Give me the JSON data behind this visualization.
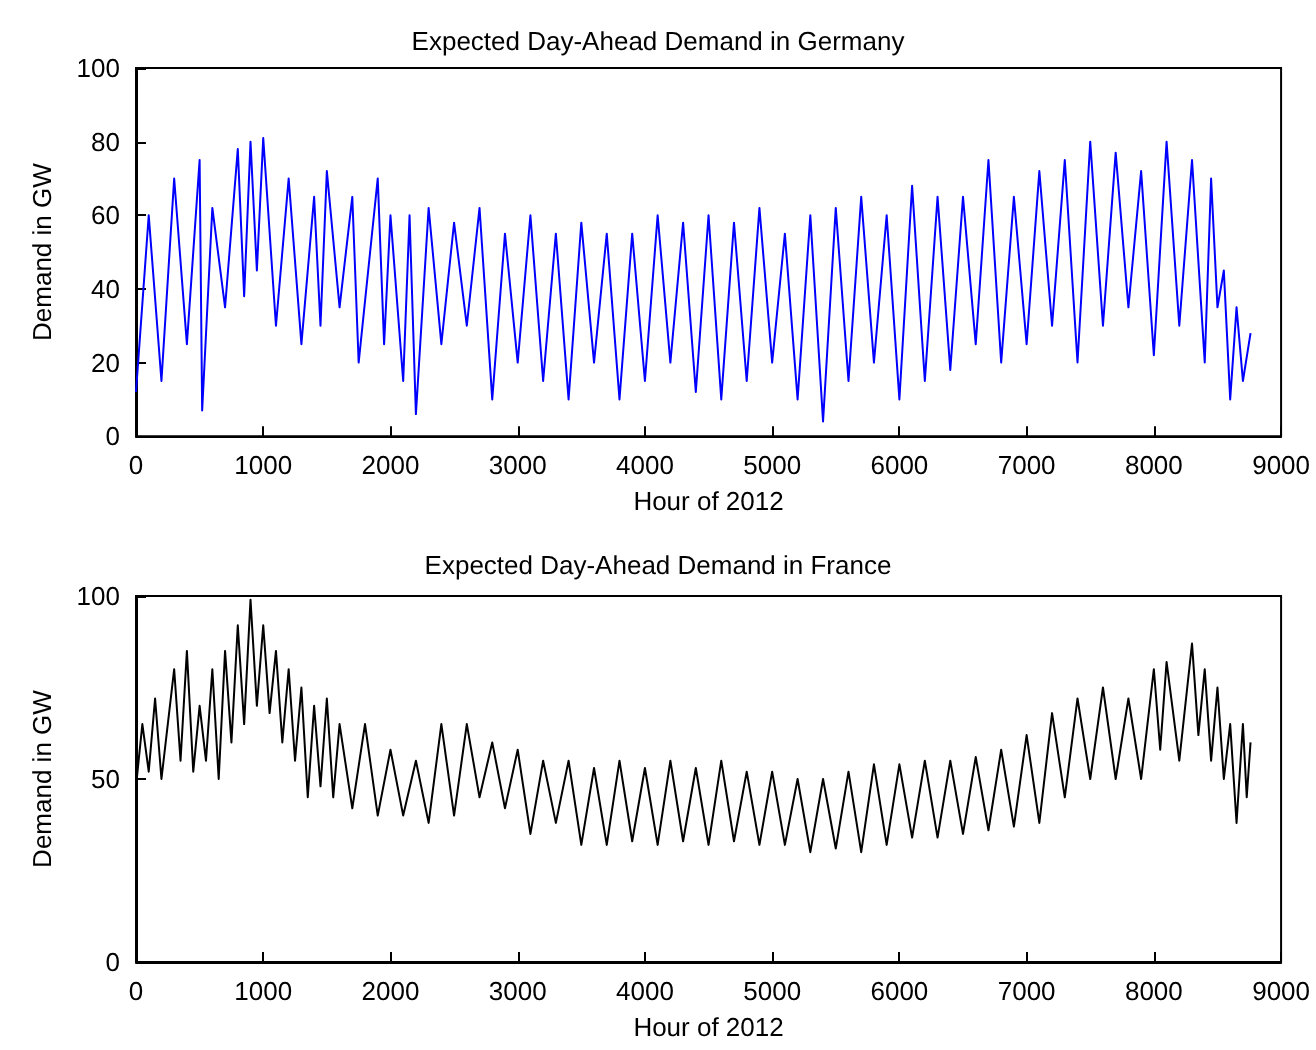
{
  "chart_data": [
    {
      "type": "line",
      "title": "Expected Day-Ahead Demand in Germany",
      "xlabel": "Hour of 2012",
      "ylabel": "Demand in GW",
      "x": [
        0,
        100,
        200,
        300,
        400,
        500,
        520,
        600,
        700,
        800,
        850,
        900,
        950,
        1000,
        1100,
        1200,
        1300,
        1400,
        1450,
        1500,
        1600,
        1700,
        1750,
        1900,
        1950,
        2000,
        2100,
        2150,
        2200,
        2300,
        2400,
        2500,
        2600,
        2700,
        2800,
        2900,
        3000,
        3100,
        3200,
        3300,
        3400,
        3500,
        3600,
        3700,
        3800,
        3900,
        4000,
        4100,
        4200,
        4300,
        4400,
        4500,
        4600,
        4700,
        4800,
        4900,
        5000,
        5100,
        5200,
        5300,
        5400,
        5500,
        5600,
        5700,
        5800,
        5900,
        6000,
        6100,
        6200,
        6300,
        6400,
        6500,
        6600,
        6700,
        6800,
        6900,
        7000,
        7100,
        7200,
        7300,
        7400,
        7500,
        7600,
        7700,
        7800,
        7900,
        8000,
        8100,
        8200,
        8300,
        8400,
        8450,
        8500,
        8550,
        8600,
        8650,
        8700,
        8760
      ],
      "series": [
        {
          "color": "#0000ff",
          "values": [
            12,
            60,
            15,
            70,
            25,
            75,
            7,
            62,
            35,
            78,
            38,
            80,
            45,
            81,
            30,
            70,
            25,
            65,
            30,
            72,
            35,
            65,
            20,
            70,
            25,
            60,
            15,
            60,
            6,
            62,
            25,
            58,
            30,
            62,
            10,
            55,
            20,
            60,
            15,
            55,
            10,
            58,
            20,
            55,
            10,
            55,
            15,
            60,
            20,
            58,
            12,
            60,
            10,
            58,
            15,
            62,
            20,
            55,
            10,
            60,
            4,
            62,
            15,
            65,
            20,
            60,
            10,
            68,
            15,
            65,
            18,
            65,
            25,
            75,
            20,
            65,
            25,
            72,
            30,
            75,
            20,
            80,
            30,
            77,
            35,
            72,
            22,
            80,
            30,
            75,
            20,
            70,
            35,
            45,
            10,
            35,
            15,
            28
          ]
        }
      ],
      "xlim": [
        0,
        9000
      ],
      "xticks": [
        0,
        1000,
        2000,
        3000,
        4000,
        5000,
        6000,
        7000,
        8000,
        9000
      ],
      "ylim": [
        0,
        100
      ],
      "yticks": [
        0,
        20,
        40,
        60,
        80,
        100
      ]
    },
    {
      "type": "line",
      "title": "Expected Day-Ahead Demand in France",
      "xlabel": "Hour of 2012",
      "ylabel": "Demand in GW",
      "x": [
        0,
        50,
        100,
        150,
        200,
        300,
        350,
        400,
        450,
        500,
        550,
        600,
        650,
        700,
        750,
        800,
        850,
        900,
        950,
        1000,
        1050,
        1100,
        1150,
        1200,
        1250,
        1300,
        1350,
        1400,
        1450,
        1500,
        1550,
        1600,
        1700,
        1800,
        1900,
        2000,
        2100,
        2200,
        2300,
        2400,
        2500,
        2600,
        2700,
        2800,
        2900,
        3000,
        3100,
        3200,
        3300,
        3400,
        3500,
        3600,
        3700,
        3800,
        3900,
        4000,
        4100,
        4200,
        4300,
        4400,
        4500,
        4600,
        4700,
        4800,
        4900,
        5000,
        5100,
        5200,
        5300,
        5400,
        5500,
        5600,
        5700,
        5800,
        5900,
        6000,
        6100,
        6200,
        6300,
        6400,
        6500,
        6600,
        6700,
        6800,
        6900,
        7000,
        7100,
        7200,
        7300,
        7400,
        7500,
        7600,
        7700,
        7800,
        7900,
        8000,
        8050,
        8100,
        8200,
        8300,
        8350,
        8400,
        8450,
        8500,
        8550,
        8600,
        8650,
        8700,
        8730,
        8760
      ],
      "series": [
        {
          "color": "#000000",
          "values": [
            48,
            65,
            52,
            72,
            50,
            80,
            55,
            85,
            52,
            70,
            55,
            80,
            50,
            85,
            60,
            92,
            65,
            99,
            70,
            92,
            68,
            85,
            60,
            80,
            55,
            75,
            45,
            70,
            48,
            72,
            45,
            65,
            42,
            65,
            40,
            58,
            40,
            55,
            38,
            65,
            40,
            65,
            45,
            60,
            42,
            58,
            35,
            55,
            38,
            55,
            32,
            53,
            32,
            55,
            33,
            53,
            32,
            55,
            33,
            53,
            32,
            55,
            33,
            52,
            32,
            52,
            32,
            50,
            30,
            50,
            31,
            52,
            30,
            54,
            32,
            54,
            34,
            55,
            34,
            55,
            35,
            56,
            36,
            58,
            37,
            62,
            38,
            68,
            45,
            72,
            50,
            75,
            50,
            72,
            50,
            80,
            58,
            82,
            55,
            87,
            62,
            80,
            55,
            75,
            50,
            65,
            38,
            65,
            45,
            60
          ]
        }
      ],
      "xlim": [
        0,
        9000
      ],
      "xticks": [
        0,
        1000,
        2000,
        3000,
        4000,
        5000,
        6000,
        7000,
        8000,
        9000
      ],
      "ylim": [
        0,
        100
      ],
      "yticks": [
        0,
        50,
        100
      ]
    }
  ]
}
